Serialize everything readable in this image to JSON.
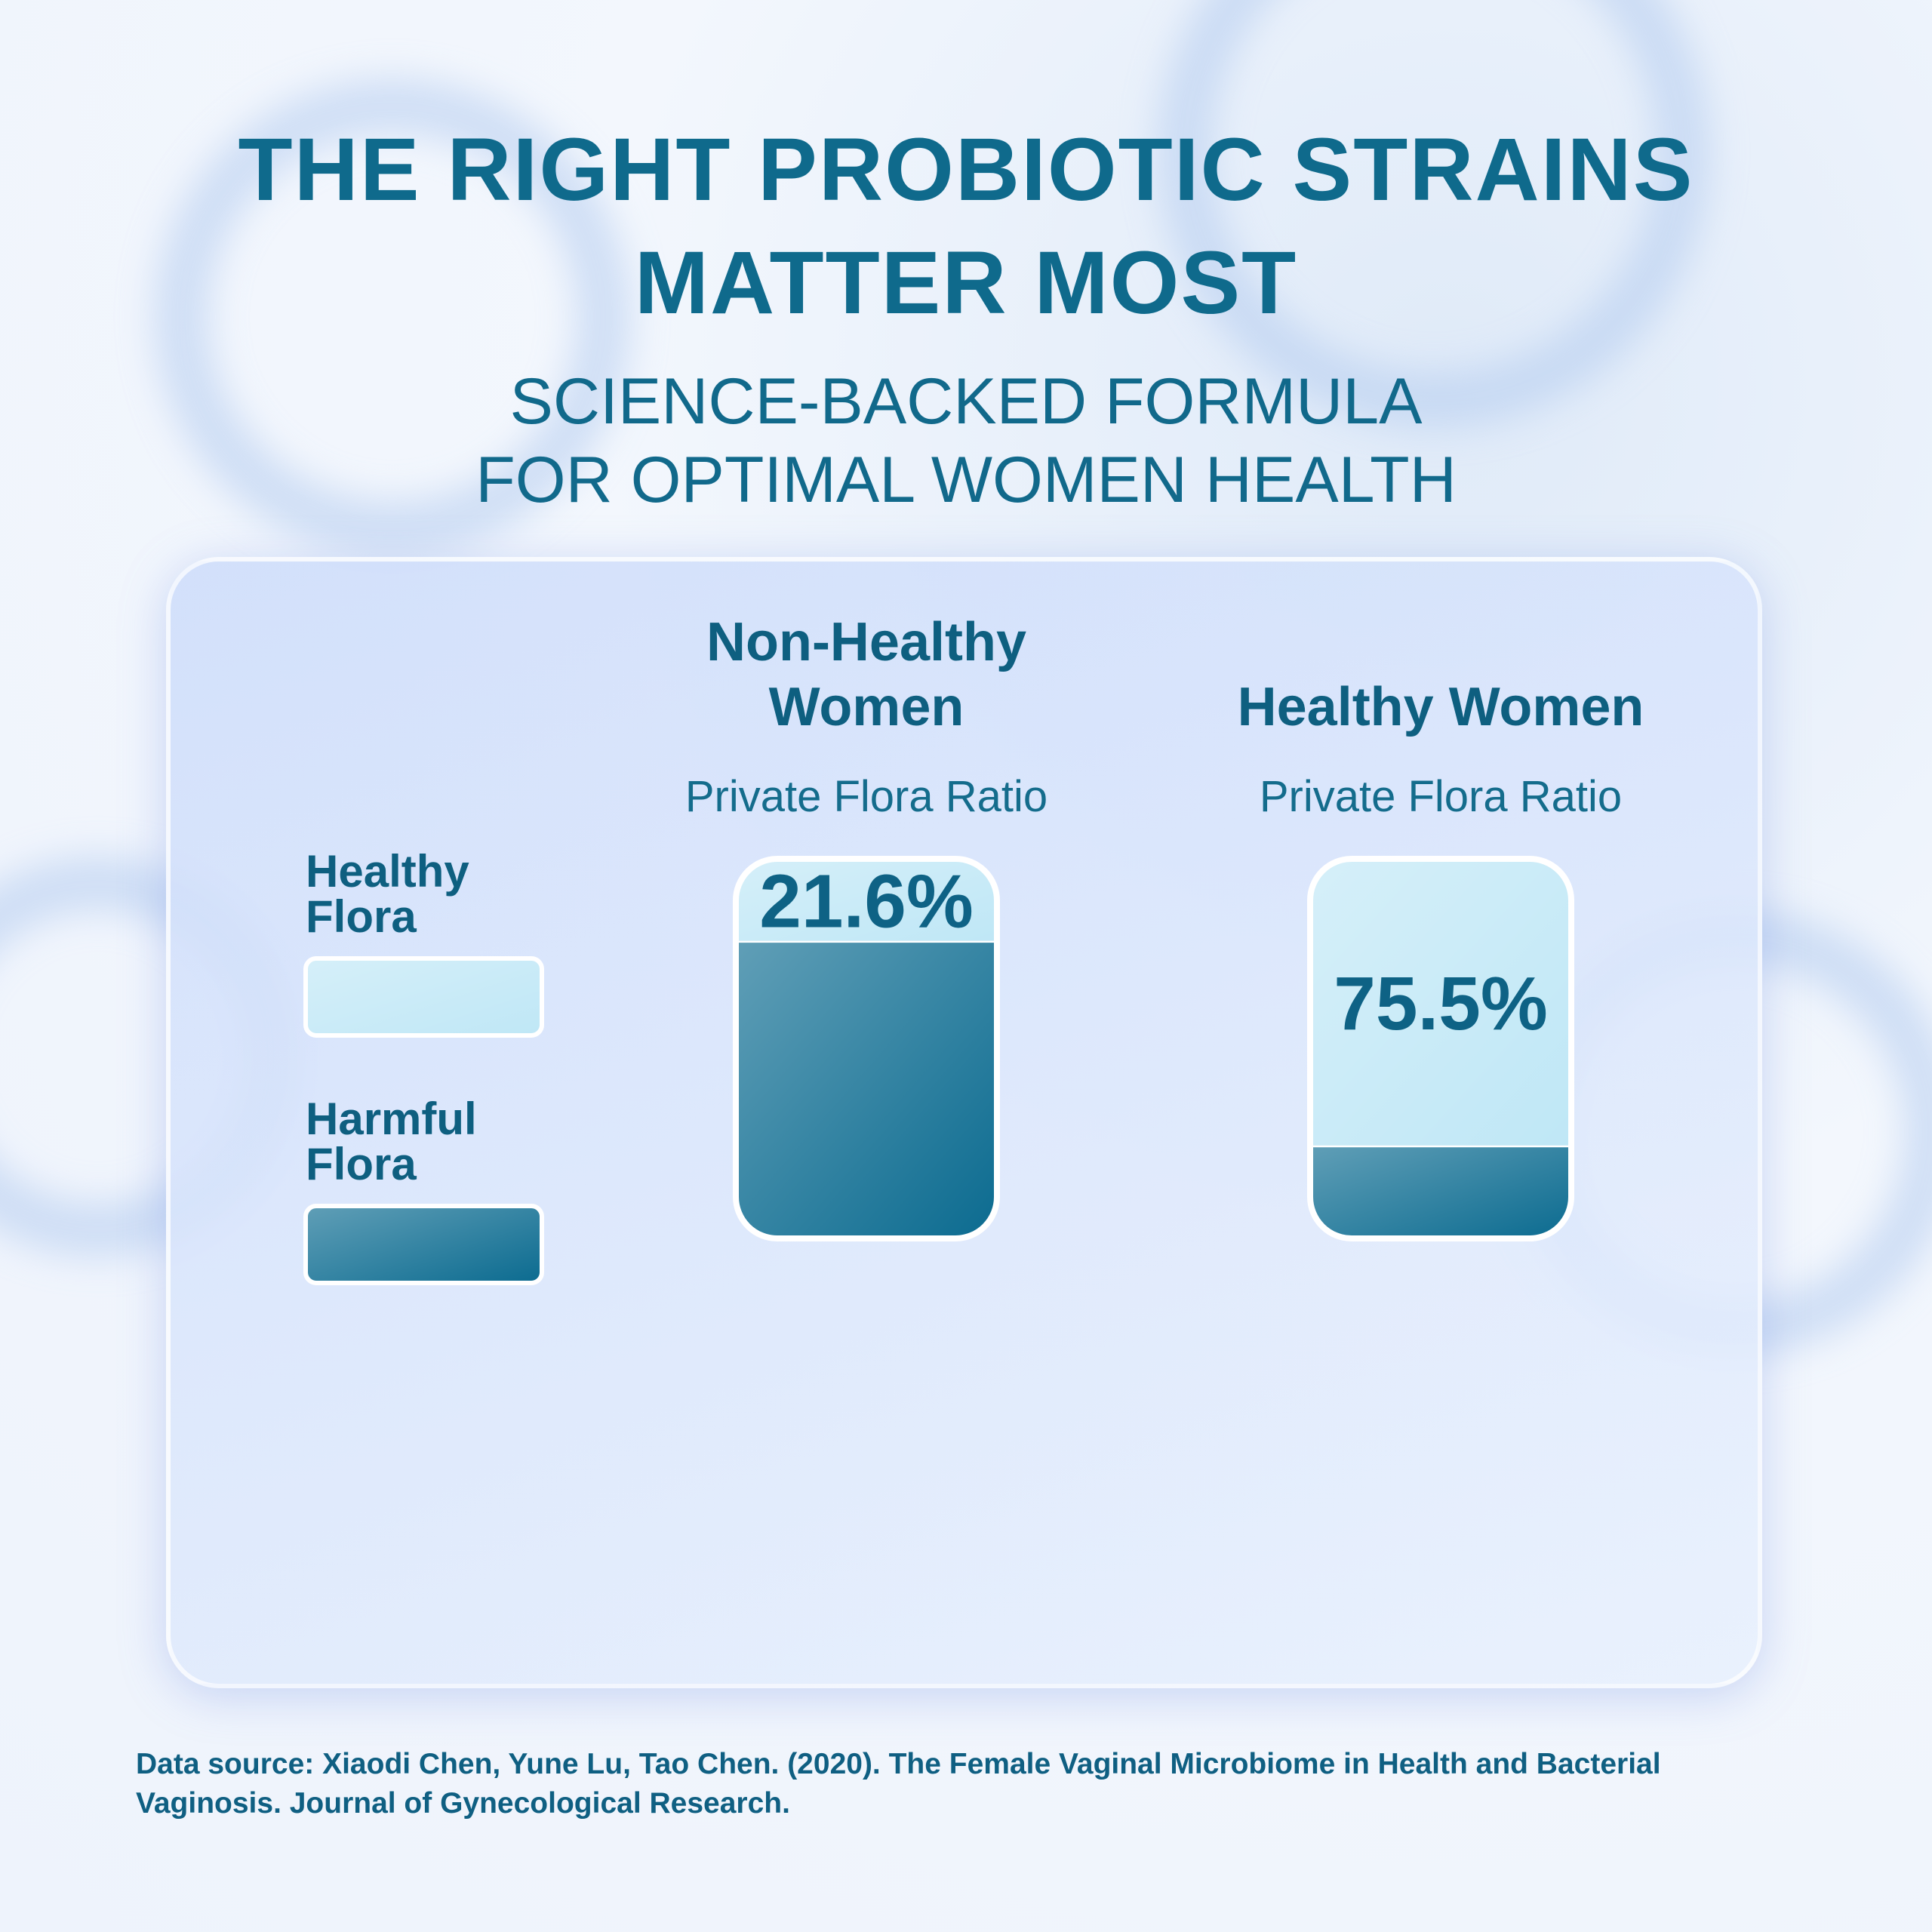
{
  "chart_data": {
    "type": "bar",
    "stacked": true,
    "title": "THE RIGHT PROBIOTIC STRAINS MATTER MOST",
    "subtitle": "SCIENCE-BACKED FORMULA FOR OPTIMAL WOMEN HEALTH",
    "categories": [
      "Non-Healthy Women",
      "Healthy Women"
    ],
    "category_subtitle": "Private Flora Ratio",
    "series": [
      {
        "name": "Healthy Flora",
        "color": "#bfe7f6",
        "values": [
          21.6,
          75.5
        ],
        "value_labels": [
          "21.6%",
          "75.5%"
        ]
      },
      {
        "name": "Harmful Flora",
        "color": "#0b6b90",
        "values": [
          78.4,
          24.5
        ]
      }
    ],
    "ylim": [
      0,
      100
    ],
    "source": "Data source: Xiaodi Chen, Yune Lu, Tao Chen. (2020). The Female Vaginal Microbiome in Health and Bacterial Vaginosis. Journal of Gynecological Research."
  }
}
